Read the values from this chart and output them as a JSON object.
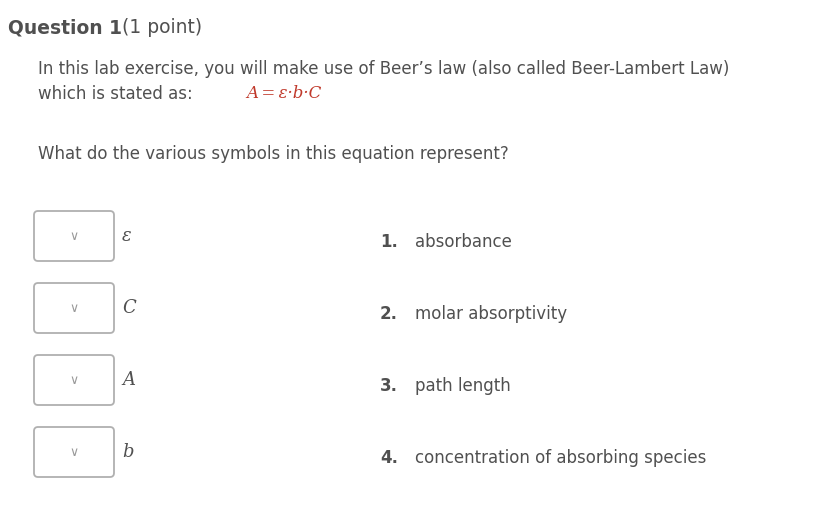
{
  "background_color": "#ffffff",
  "title_bold": "Question 1",
  "title_normal": " (1 point)",
  "title_fontsize": 13.5,
  "body_text_line1": "In this lab exercise, you will make use of Beer’s law (also called Beer-Lambert Law)",
  "body_text_line2": "which is stated as:  ",
  "formula": "A = ε·b·C",
  "question": "What do the various symbols in this equation represent?",
  "dropdowns": [
    "ε",
    "C",
    "A",
    "b"
  ],
  "answers": [
    "absorbance",
    "molar absorptivity",
    "path length",
    "concentration of absorbing species"
  ],
  "answer_numbers": [
    "1.",
    "2.",
    "3.",
    "4."
  ],
  "box_color": "#b0b0b0",
  "box_facecolor": "#ffffff",
  "text_color": "#505050",
  "formula_color": "#c0392b",
  "font_size_body": 12,
  "font_size_answer": 12,
  "font_size_symbol": 13,
  "figw": 8.29,
  "figh": 5.11
}
